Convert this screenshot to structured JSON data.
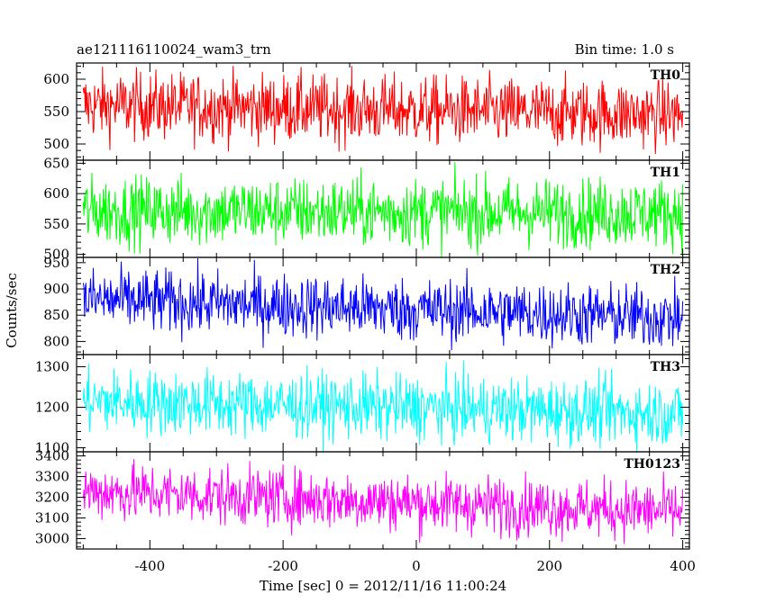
{
  "header": {
    "left_title": "ae121116110024_wam3_trn",
    "right_title": "Bin time: 1.0 s"
  },
  "chart_data": {
    "type": "line",
    "xlabel": "Time [sec] 0 = 2012/11/16 11:00:24",
    "ylabel": "Counts/sec",
    "xlim": [
      -510,
      410
    ],
    "x_ticks": [
      -400,
      -200,
      0,
      200,
      400
    ],
    "bin_time_sec": 1.0,
    "panels": [
      {
        "name": "TH0",
        "color": "#ff0000",
        "ylim": [
          475,
          625
        ],
        "y_ticks": [
          500,
          550,
          600
        ],
        "mean_start": 560,
        "mean_end": 545,
        "amplitude": 26
      },
      {
        "name": "TH1",
        "color": "#00ff00",
        "ylim": [
          495,
          655
        ],
        "y_ticks": [
          500,
          550,
          600,
          650
        ],
        "mean_start": 572,
        "mean_end": 568,
        "amplitude": 28
      },
      {
        "name": "TH2",
        "color": "#0000ff",
        "ylim": [
          775,
          960
        ],
        "y_ticks": [
          800,
          850,
          900,
          950
        ],
        "mean_start": 880,
        "mean_end": 845,
        "amplitude": 30
      },
      {
        "name": "TH3",
        "color": "#00ffff",
        "ylim": [
          1090,
          1330
        ],
        "y_ticks": [
          1100,
          1200,
          1300
        ],
        "mean_start": 1215,
        "mean_end": 1185,
        "amplitude": 40
      },
      {
        "name": "TH0123",
        "color": "#ff00ff",
        "ylim": [
          2950,
          3420
        ],
        "y_ticks": [
          3000,
          3100,
          3200,
          3300,
          3400
        ],
        "mean_start": 3230,
        "mean_end": 3130,
        "amplitude": 70
      }
    ]
  }
}
